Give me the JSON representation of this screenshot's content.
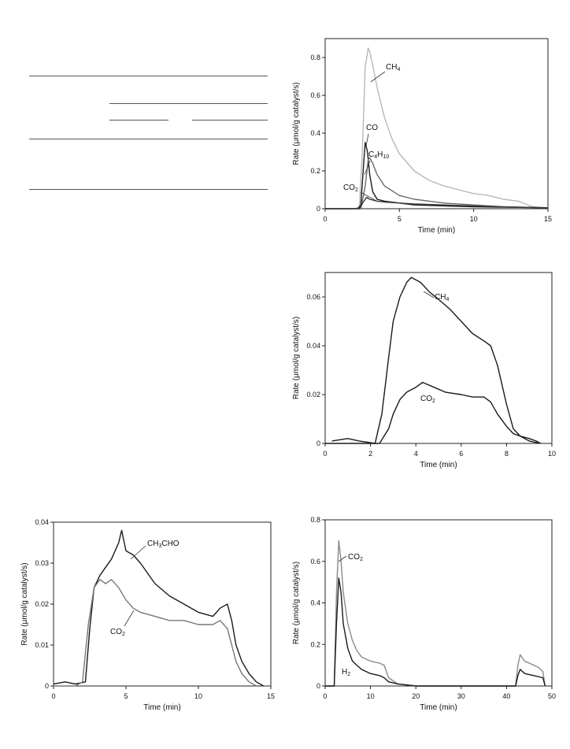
{
  "chart_data": [
    {
      "type": "line",
      "title": "",
      "xlabel": "Time (min)",
      "ylabel": "Rate (μmol/g catalyst/s)",
      "xlim": [
        0,
        15
      ],
      "ylim": [
        0,
        0.9
      ],
      "xticks": [
        0,
        5,
        10,
        15
      ],
      "yticks": [
        0,
        0.2,
        0.4,
        0.6,
        0.8
      ],
      "ytick_labels": [
        "0",
        "0.2",
        "0.4",
        "0.6",
        "0.8"
      ],
      "grid": false,
      "series": [
        {
          "name": "CH",
          "sub": "4",
          "color": "#b8b8b8",
          "x": [
            0,
            2,
            2.3,
            2.5,
            2.7,
            2.9,
            3.0,
            3.2,
            3.5,
            4.0,
            4.5,
            5,
            6,
            7,
            8,
            9,
            10,
            11,
            12,
            13,
            14,
            15
          ],
          "y": [
            0,
            0,
            0.01,
            0.3,
            0.75,
            0.85,
            0.83,
            0.76,
            0.64,
            0.48,
            0.37,
            0.29,
            0.2,
            0.15,
            0.12,
            0.1,
            0.08,
            0.07,
            0.05,
            0.04,
            0.01,
            0.005
          ]
        },
        {
          "name": "CO",
          "sub": "",
          "color": "#1a1a1a",
          "x": [
            0,
            2.2,
            2.4,
            2.6,
            2.7,
            2.85,
            3.0,
            3.2,
            3.5,
            4,
            5,
            6,
            8,
            10,
            12,
            15
          ],
          "y": [
            0,
            0,
            0.02,
            0.25,
            0.35,
            0.3,
            0.18,
            0.09,
            0.05,
            0.04,
            0.03,
            0.02,
            0.015,
            0.01,
            0.008,
            0.005
          ]
        },
        {
          "name": "C",
          "sub": "4",
          "name2": "H",
          "sub2": "10",
          "color": "#6a6a6a",
          "x": [
            0,
            2.4,
            2.7,
            2.9,
            3.0,
            3.2,
            3.5,
            4,
            5,
            6,
            8,
            10,
            12,
            15
          ],
          "y": [
            0,
            0,
            0.12,
            0.26,
            0.27,
            0.24,
            0.18,
            0.12,
            0.07,
            0.05,
            0.03,
            0.02,
            0.01,
            0.005
          ]
        },
        {
          "name": "CO",
          "sub": "2",
          "color": "#3a3a3a",
          "x": [
            0,
            2.3,
            2.6,
            2.8,
            3.0,
            3.5,
            4,
            5,
            6,
            8,
            10,
            12,
            15
          ],
          "y": [
            0,
            0,
            0.04,
            0.06,
            0.05,
            0.04,
            0.035,
            0.03,
            0.025,
            0.02,
            0.015,
            0.01,
            0.005
          ]
        }
      ]
    },
    {
      "type": "line",
      "title": "",
      "xlabel": "Time (min)",
      "ylabel": "Rate (μmol/g catalyst/s)",
      "xlim": [
        0,
        10
      ],
      "ylim": [
        0,
        0.07
      ],
      "xticks": [
        0,
        2,
        4,
        6,
        8,
        10
      ],
      "yticks": [
        0,
        0.02,
        0.04,
        0.06
      ],
      "ytick_labels": [
        "0",
        "0.02",
        "0.04",
        "0.06"
      ],
      "grid": false,
      "series": [
        {
          "name": "CH",
          "sub": "4",
          "color": "#1a1a1a",
          "x": [
            0.3,
            1,
            1.5,
            2.2,
            2.5,
            2.8,
            3.0,
            3.3,
            3.6,
            3.8,
            4.2,
            4.6,
            5.0,
            5.5,
            6.0,
            6.5,
            7.0,
            7.3,
            7.6,
            8.0,
            8.3,
            8.6,
            9.0,
            9.3,
            9.5
          ],
          "y": [
            0.001,
            0.002,
            0.001,
            0.0,
            0.012,
            0.035,
            0.05,
            0.06,
            0.066,
            0.068,
            0.066,
            0.062,
            0.059,
            0.055,
            0.05,
            0.045,
            0.042,
            0.04,
            0.032,
            0.016,
            0.006,
            0.003,
            0.002,
            0.001,
            0
          ]
        },
        {
          "name": "CO",
          "sub": "2",
          "color": "#1a1a1a",
          "x": [
            0,
            2.4,
            2.8,
            3.0,
            3.3,
            3.6,
            4.0,
            4.3,
            4.8,
            5.3,
            6.0,
            6.5,
            7.0,
            7.3,
            7.6,
            8.0,
            8.3,
            8.6,
            9.0,
            9.5
          ],
          "y": [
            0,
            0,
            0.006,
            0.012,
            0.018,
            0.021,
            0.023,
            0.025,
            0.023,
            0.021,
            0.02,
            0.019,
            0.019,
            0.017,
            0.012,
            0.007,
            0.004,
            0.003,
            0.001,
            0
          ]
        }
      ]
    },
    {
      "type": "line",
      "title": "",
      "xlabel": "Time (min)",
      "ylabel": "Rate (μmol/g catalyst/s)",
      "xlim": [
        0,
        15
      ],
      "ylim": [
        0,
        0.04
      ],
      "xticks": [
        0,
        5,
        10,
        15
      ],
      "yticks": [
        0,
        0.01,
        0.02,
        0.03,
        0.04
      ],
      "ytick_labels": [
        "0",
        "0.01",
        "0.02",
        "0.03",
        "0.04"
      ],
      "grid": false,
      "series": [
        {
          "name": "CH",
          "sub": "3",
          "name2": "CHO",
          "sub2": "",
          "color": "#1a1a1a",
          "x": [
            0,
            0.8,
            1.5,
            2.2,
            2.5,
            2.8,
            3.2,
            3.6,
            4.0,
            4.5,
            4.7,
            5.0,
            5.5,
            6.0,
            7.0,
            8.0,
            9.0,
            10.0,
            11.0,
            11.5,
            12.0,
            12.3,
            12.6,
            13.0,
            13.5,
            14.0,
            14.5
          ],
          "y": [
            0.0005,
            0.001,
            0.0005,
            0.001,
            0.014,
            0.024,
            0.027,
            0.029,
            0.031,
            0.035,
            0.038,
            0.033,
            0.032,
            0.03,
            0.025,
            0.022,
            0.02,
            0.018,
            0.017,
            0.019,
            0.02,
            0.016,
            0.01,
            0.006,
            0.003,
            0.001,
            0
          ]
        },
        {
          "name": "CO",
          "sub": "2",
          "color": "#777777",
          "x": [
            0,
            1.5,
            2.0,
            2.4,
            2.8,
            3.2,
            3.6,
            4.0,
            4.5,
            5.0,
            5.5,
            6.0,
            7.0,
            8.0,
            9.0,
            10.0,
            11.0,
            11.5,
            12.0,
            12.3,
            12.6,
            13.0,
            13.5,
            14.0
          ],
          "y": [
            0,
            0,
            0.001,
            0.015,
            0.024,
            0.026,
            0.025,
            0.026,
            0.024,
            0.021,
            0.019,
            0.018,
            0.017,
            0.016,
            0.016,
            0.015,
            0.015,
            0.016,
            0.014,
            0.01,
            0.006,
            0.003,
            0.001,
            0
          ]
        }
      ]
    },
    {
      "type": "line",
      "title": "",
      "xlabel": "Time (min)",
      "ylabel": "Rate (μmol/g catalyst/s)",
      "xlim": [
        0,
        50
      ],
      "ylim": [
        0,
        0.8
      ],
      "xticks": [
        0,
        10,
        20,
        30,
        40,
        50
      ],
      "yticks": [
        0,
        0.2,
        0.4,
        0.6,
        0.8
      ],
      "ytick_labels": [
        "0",
        "0.2",
        "0.4",
        "0.6",
        "0.8"
      ],
      "grid": false,
      "series": [
        {
          "name": "CO",
          "sub": "2",
          "color": "#8a8a8a",
          "x": [
            0,
            2.0,
            2.5,
            3.0,
            3.5,
            4.0,
            5.0,
            6.0,
            7.0,
            8.0,
            10.0,
            12.0,
            13.0,
            14.0,
            16.0,
            18.0,
            20.0,
            42.0,
            42.5,
            43.0,
            44.0,
            46.0,
            47.0,
            48.0,
            48.5
          ],
          "y": [
            0,
            0,
            0.45,
            0.7,
            0.6,
            0.45,
            0.3,
            0.22,
            0.17,
            0.14,
            0.12,
            0.11,
            0.1,
            0.04,
            0.01,
            0.005,
            0,
            0,
            0.1,
            0.15,
            0.12,
            0.1,
            0.09,
            0.07,
            0
          ]
        },
        {
          "name": "H",
          "sub": "2",
          "color": "#1a1a1a",
          "x": [
            0,
            2.0,
            2.5,
            3.0,
            3.5,
            4.0,
            5.0,
            6.0,
            7.0,
            8.0,
            10.0,
            12.0,
            13.0,
            14.0,
            16.0,
            18.0,
            20.0,
            42.0,
            42.5,
            43.0,
            44.0,
            46.0,
            47.0,
            48.0,
            48.5
          ],
          "y": [
            0,
            0,
            0.3,
            0.52,
            0.45,
            0.3,
            0.18,
            0.12,
            0.1,
            0.08,
            0.06,
            0.05,
            0.04,
            0.02,
            0.01,
            0.005,
            0,
            0,
            0.05,
            0.08,
            0.06,
            0.05,
            0.045,
            0.04,
            0
          ]
        }
      ]
    }
  ]
}
